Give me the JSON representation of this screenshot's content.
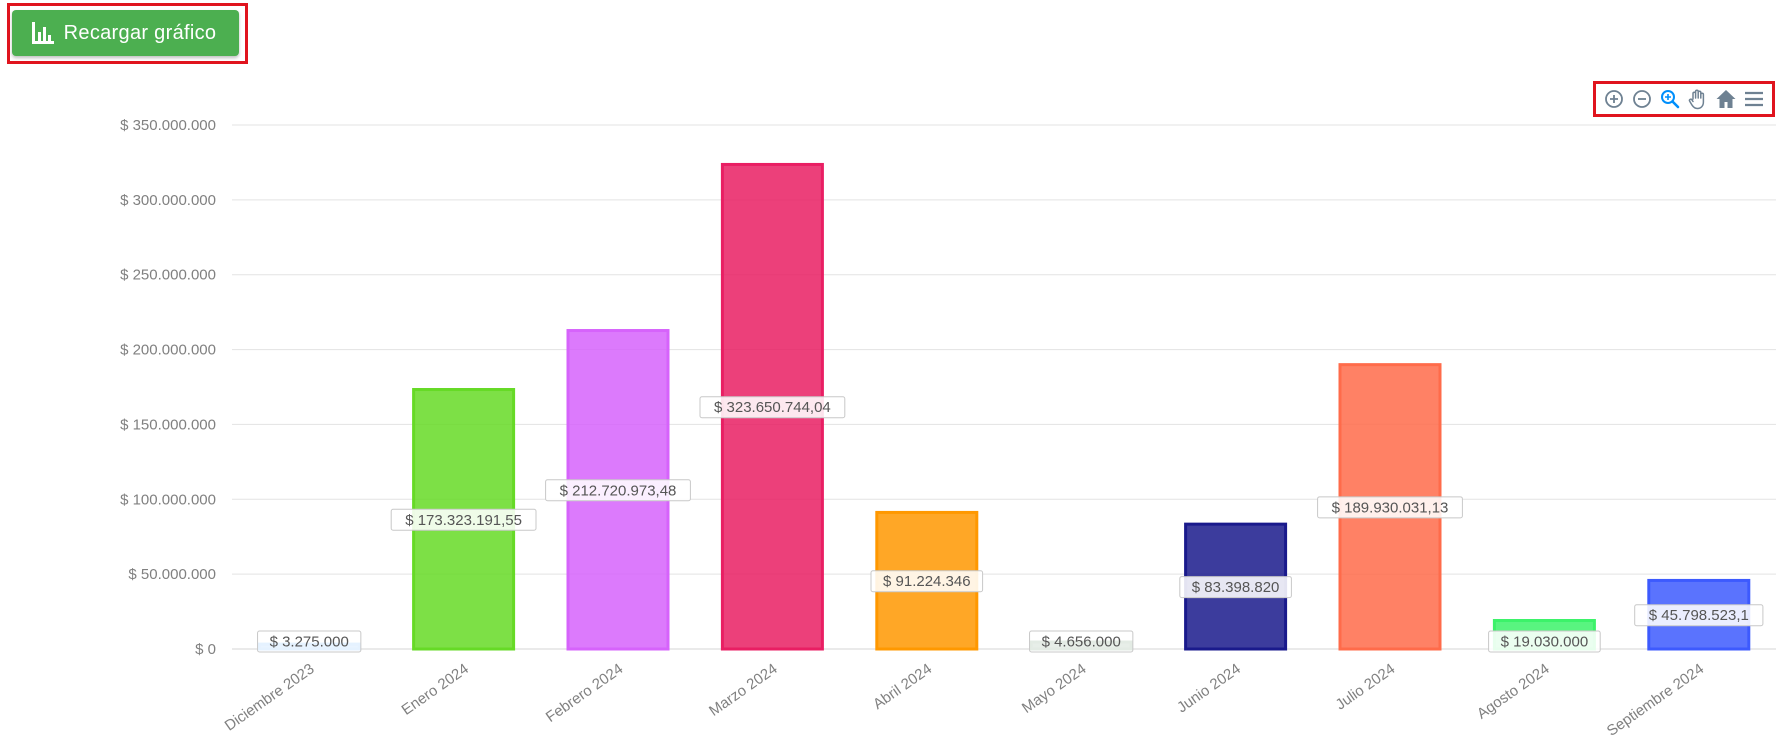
{
  "toolbar": {
    "reload_label": "Recargar gráfico",
    "tools": [
      "zoom-in-icon",
      "zoom-out-icon",
      "selection-zoom-icon",
      "pan-hand-icon",
      "home-reset-icon",
      "menu-icon"
    ],
    "accent": "#008ffb"
  },
  "chart_data": {
    "type": "bar",
    "categories": [
      "Diciembre 2023",
      "Enero 2024",
      "Febrero 2024",
      "Marzo 2024",
      "Abril 2024",
      "Mayo 2024",
      "Junio 2024",
      "Julio 2024",
      "Agosto 2024",
      "Septiembre 2024"
    ],
    "values": [
      3275000,
      173323191.55,
      212720973.48,
      323650744.04,
      91224346,
      4656000,
      83398820,
      189930031.13,
      19030000,
      45798523.1
    ],
    "data_labels": [
      "$ 3.275.000",
      "$ 173.323.191,55",
      "$ 212.720.973,48",
      "$ 323.650.744,04",
      "$ 91.224.346",
      "$ 4.656.000",
      "$ 83.398.820",
      "$ 189.930.031,13",
      "$ 19.030.000",
      "$ 45.798.523,1"
    ],
    "colors": [
      "#2e93fa",
      "#66da26",
      "#d663fb",
      "#e91e63",
      "#ff9800",
      "#1b5e20",
      "#1a1a8c",
      "#ff6b4a",
      "#3cf26a",
      "#3d5afe"
    ],
    "y_ticks": [
      0,
      50000000,
      100000000,
      150000000,
      200000000,
      250000000,
      300000000,
      350000000
    ],
    "y_tick_labels": [
      "$ 0",
      "$ 50.000.000",
      "$ 100.000.000",
      "$ 150.000.000",
      "$ 200.000.000",
      "$ 250.000.000",
      "$ 300.000.000",
      "$ 350.000.000"
    ],
    "ylim": [
      0,
      350000000
    ],
    "grid": true,
    "title": "",
    "xlabel": "",
    "ylabel": ""
  }
}
